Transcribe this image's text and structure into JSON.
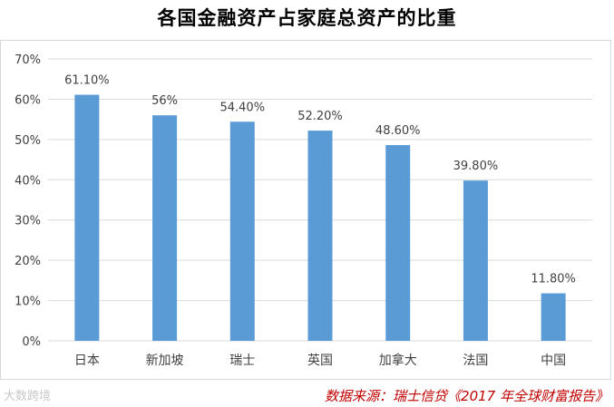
{
  "chart_data": {
    "type": "bar",
    "title": "各国金融资产占家庭总资产的比重",
    "categories": [
      "日本",
      "新加坡",
      "瑞士",
      "英国",
      "加拿大",
      "法国",
      "中国"
    ],
    "values": [
      61.1,
      56,
      54.4,
      52.2,
      48.6,
      39.8,
      11.8
    ],
    "data_labels": [
      "61.10%",
      "56%",
      "54.40%",
      "52.20%",
      "48.60%",
      "39.80%",
      "11.80%"
    ],
    "yticks": [
      "0%",
      "10%",
      "20%",
      "30%",
      "40%",
      "50%",
      "60%",
      "70%"
    ],
    "ylim": [
      0,
      70
    ],
    "xlabel": "",
    "ylabel": "",
    "grid": true,
    "legend": "none",
    "bar_color": "#5b9bd5"
  },
  "source_note": "数据来源：瑞士信贷《2017 年全球财富报告》",
  "watermark_text": "大数跨境",
  "colors": {
    "gridline": "#d9d9d9",
    "axis_text": "#404040",
    "source_text": "#c00000"
  }
}
